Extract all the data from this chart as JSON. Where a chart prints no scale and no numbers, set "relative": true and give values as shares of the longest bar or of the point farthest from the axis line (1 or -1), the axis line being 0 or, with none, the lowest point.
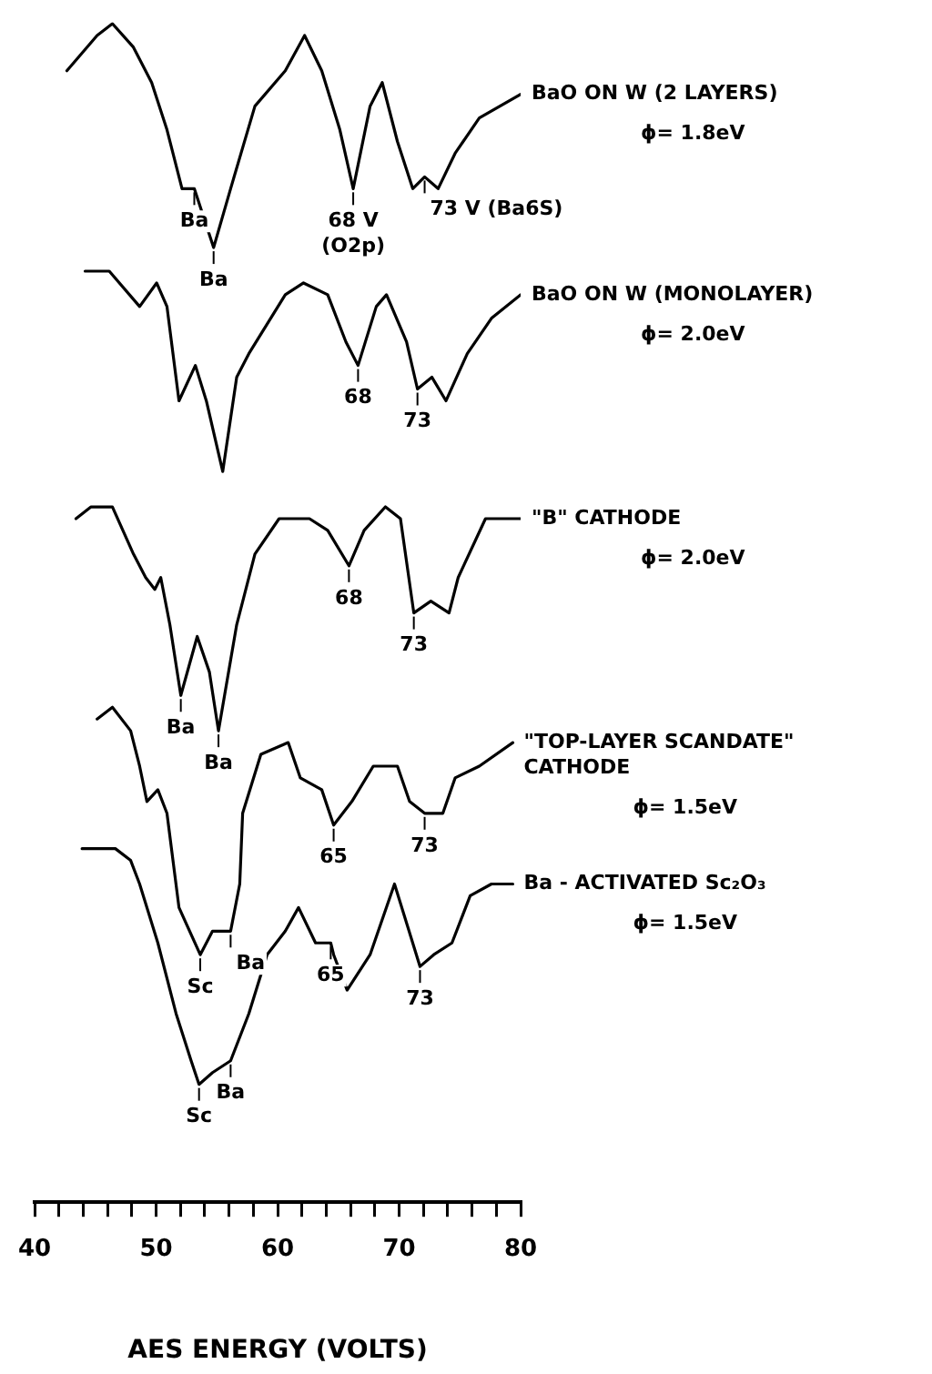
{
  "chart_data": {
    "type": "line",
    "relative": true,
    "xlabel": "AES ENERGY (VOLTS)",
    "xlim": [
      40,
      80
    ],
    "xticks": [
      40,
      {
        "value": 42,
        "label": null
      },
      {
        "value": 44,
        "label": null
      },
      {
        "value": 46,
        "label": null
      },
      {
        "value": 48,
        "label": null
      },
      50,
      {
        "value": 52,
        "label": null
      },
      {
        "value": 54,
        "label": null
      },
      {
        "value": 56,
        "label": null
      },
      {
        "value": 58,
        "label": null
      },
      60,
      {
        "value": 62,
        "label": null
      },
      {
        "value": 64,
        "label": null
      },
      {
        "value": 66,
        "label": null
      },
      {
        "value": 68,
        "label": null
      },
      70,
      {
        "value": 72,
        "label": null
      },
      {
        "value": 74,
        "label": null
      },
      {
        "value": 76,
        "label": null
      },
      {
        "value": 78,
        "label": null
      },
      80
    ],
    "legend": false,
    "grid": false,
    "marker": "none",
    "line_style": "solid",
    "series": [
      {
        "name": "BaO ON W (2 LAYERS)",
        "color": "#000000",
        "x": [
          42.65,
          45.14,
          46.4,
          48.13,
          49.63,
          50.89,
          52.13,
          53.14,
          54.73,
          56.13,
          58.13,
          60.63,
          62.22,
          63.63,
          65.12,
          66.22,
          67.61,
          68.61,
          69.86,
          71.12,
          72.1,
          73.21,
          74.61,
          76.6,
          80.0
        ],
        "values": [
          0.96,
          0.99,
          1.0,
          0.98,
          0.95,
          0.91,
          0.86,
          0.86,
          0.81,
          0.86,
          0.93,
          0.96,
          0.99,
          0.96,
          0.91,
          0.86,
          0.93,
          0.95,
          0.9,
          0.86,
          0.87,
          0.86,
          0.89,
          0.92,
          0.94
        ]
      },
      {
        "name": "BaO ON W (MONOLAYER)",
        "color": "#000000",
        "x": [
          44.15,
          46.14,
          48.64,
          50.04,
          50.89,
          51.88,
          53.23,
          54.13,
          55.48,
          56.63,
          57.63,
          60.63,
          62.13,
          64.12,
          65.62,
          66.62,
          68.12,
          68.96,
          70.61,
          71.51,
          72.7,
          73.86,
          75.61,
          77.6,
          80.0
        ],
        "values": [
          0.79,
          0.79,
          0.76,
          0.78,
          0.76,
          0.68,
          0.71,
          0.68,
          0.62,
          0.7,
          0.72,
          0.77,
          0.78,
          0.77,
          0.73,
          0.71,
          0.76,
          0.77,
          0.73,
          0.69,
          0.7,
          0.68,
          0.72,
          0.75,
          0.77
        ]
      },
      {
        "name": "\"B\" CATHODE",
        "color": "#000000",
        "x": [
          43.4,
          44.64,
          46.4,
          48.13,
          49.14,
          49.89,
          50.38,
          51.13,
          52.03,
          53.38,
          54.38,
          55.13,
          56.63,
          58.13,
          60.12,
          62.62,
          64.12,
          65.87,
          67.12,
          68.87,
          70.11,
          71.21,
          72.61,
          74.11,
          74.86,
          77.11,
          80.0
        ],
        "values": [
          0.58,
          0.59,
          0.59,
          0.55,
          0.53,
          0.52,
          0.53,
          0.49,
          0.43,
          0.48,
          0.45,
          0.4,
          0.49,
          0.55,
          0.58,
          0.58,
          0.57,
          0.54,
          0.57,
          0.59,
          0.58,
          0.5,
          0.51,
          0.5,
          0.53,
          0.58,
          0.58
        ]
      },
      {
        "name": "\"TOP-LAYER SCANDATE\"\nCATHODE",
        "color": "#000000",
        "x": [
          45.14,
          46.4,
          47.9,
          48.64,
          49.24,
          50.14,
          50.89,
          51.88,
          53.63,
          54.64,
          56.13,
          56.88,
          57.12,
          58.62,
          60.87,
          61.87,
          63.63,
          64.61,
          66.11,
          67.87,
          69.86,
          70.86,
          72.1,
          73.6,
          74.61,
          76.6,
          79.36
        ],
        "values": [
          0.41,
          0.42,
          0.4,
          0.37,
          0.34,
          0.35,
          0.33,
          0.25,
          0.21,
          0.23,
          0.23,
          0.27,
          0.33,
          0.38,
          0.39,
          0.36,
          0.35,
          0.32,
          0.34,
          0.37,
          0.37,
          0.34,
          0.33,
          0.33,
          0.36,
          0.37,
          0.39
        ]
      },
      {
        "name": "Ba - ACTIVATED Sc₂O₃",
        "color": "#000000",
        "x": [
          43.9,
          46.64,
          47.9,
          48.64,
          50.14,
          51.64,
          52.88,
          53.53,
          54.64,
          56.13,
          57.63,
          59.13,
          60.63,
          61.72,
          63.12,
          64.37,
          64.61,
          65.72,
          67.61,
          69.62,
          71.72,
          72.85,
          74.35,
          75.85,
          77.6,
          79.36
        ],
        "values": [
          0.3,
          0.3,
          0.29,
          0.27,
          0.22,
          0.16,
          0.12,
          0.1,
          0.11,
          0.12,
          0.16,
          0.21,
          0.23,
          0.25,
          0.22,
          0.22,
          0.21,
          0.18,
          0.21,
          0.27,
          0.2,
          0.21,
          0.22,
          0.26,
          0.27,
          0.27
        ]
      }
    ],
    "annotations": [
      "ϕ= 1.8eV",
      "ϕ= 2.0eV",
      "ϕ= 2.0eV",
      "ϕ= 1.5eV",
      "ϕ= 1.5eV",
      {
        "text": "Ba",
        "x": 53.14,
        "y": 0.86
      },
      {
        "text": "Ba",
        "x": 54.73,
        "y": 0.81
      },
      {
        "text": "68 V\n(O2p)",
        "x": 66.22,
        "y": 0.86
      },
      {
        "text": "73 V (Ba6S)",
        "x": 72.1,
        "y": 0.87
      },
      {
        "text": "68",
        "x": 66.62,
        "y": 0.71
      },
      {
        "text": "73",
        "x": 71.51,
        "y": 0.69
      },
      {
        "text": "Ba",
        "x": 52.03,
        "y": 0.43
      },
      {
        "text": "Ba",
        "x": 55.13,
        "y": 0.4
      },
      {
        "text": "68",
        "x": 65.87,
        "y": 0.54
      },
      {
        "text": "73",
        "x": 71.21,
        "y": 0.5
      },
      {
        "text": "Sc",
        "x": 53.63,
        "y": 0.21
      },
      {
        "text": "Ba",
        "x": 56.13,
        "y": 0.23
      },
      {
        "text": "65",
        "x": 64.61,
        "y": 0.32
      },
      {
        "text": "73",
        "x": 72.1,
        "y": 0.33
      },
      {
        "text": "Sc",
        "x": 53.53,
        "y": 0.1
      },
      {
        "text": "Ba",
        "x": 56.13,
        "y": 0.12
      },
      {
        "text": "65",
        "x": 64.37,
        "y": 0.22
      },
      {
        "text": "73",
        "x": 71.72,
        "y": 0.2
      }
    ]
  }
}
